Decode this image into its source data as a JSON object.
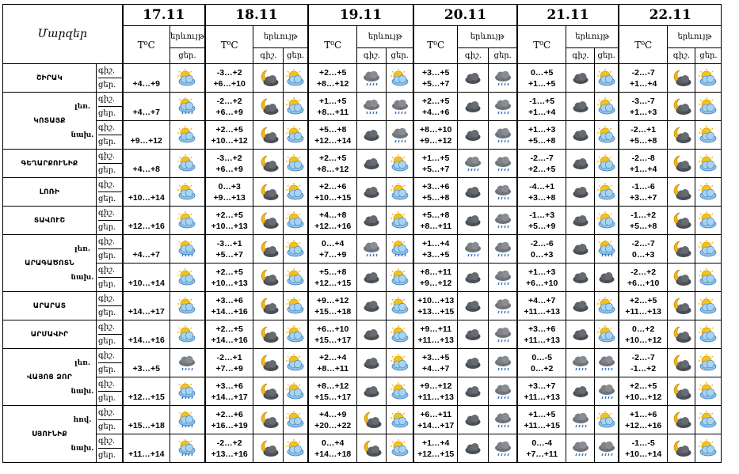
{
  "header": {
    "region_label": "Մարզեր",
    "dates": [
      "17.11",
      "18.11",
      "19.11",
      "20.11",
      "21.11",
      "22.11"
    ],
    "temp_label": "T⁰C",
    "weather_label": "երևույթ",
    "night_label": "գիշ.",
    "day_label": "ցեր."
  },
  "day_night_labels": {
    "night": "գիշ.",
    "day": "ցեր."
  },
  "rows": [
    {
      "region": "ՇԻՐԱԿ",
      "sub": "",
      "night_label": "գիշ.",
      "day_label": "ցեր.",
      "d17": {
        "temp": "+4…+9",
        "icon": "sun-cloud-icon"
      },
      "days": [
        {
          "night": "-3…+2",
          "day": "+6…+10",
          "icon_night": "moon-cloud-icon",
          "icon_day": "sun-cloud-icon"
        },
        {
          "night": "+2…+5",
          "day": "+8…+12",
          "icon_night": "rain-cloud-icon",
          "icon_day": "sun-cloud-icon"
        },
        {
          "night": "+3…+5",
          "day": "+5…+7",
          "icon_night": "dark-cloud-icon",
          "icon_day": "rain-cloud-icon"
        },
        {
          "night": "0…+5",
          "day": "+1…+5",
          "icon_night": "dark-cloud-icon",
          "icon_day": "sun-cloud-icon"
        },
        {
          "night": "-2…-7",
          "day": "+1…+4",
          "icon_night": "moon-cloud-icon",
          "icon_day": "sun-cloud-icon"
        }
      ]
    },
    {
      "region": "ԿՈՏԱՅՔ",
      "sub": "լեռ.",
      "night_label": "գիշ.",
      "day_label": "ցեր.",
      "d17": {
        "temp": "+4…+7",
        "icon": "sun-rain-icon"
      },
      "days": [
        {
          "night": "-2…+2",
          "day": "+6…+9",
          "icon_night": "moon-cloud-icon",
          "icon_day": "sun-cloud-icon"
        },
        {
          "night": "+1…+5",
          "day": "+8…+11",
          "icon_night": "rain-cloud-icon",
          "icon_day": "rain-cloud-icon"
        },
        {
          "night": "+2…+5",
          "day": "+4…+6",
          "icon_night": "dark-cloud-icon",
          "icon_day": "rain-cloud-icon"
        },
        {
          "night": "-1…+5",
          "day": "+1…+4",
          "icon_night": "dark-cloud-icon",
          "icon_day": "sun-cloud-icon"
        },
        {
          "night": "-3…-7",
          "day": "+1…+3",
          "icon_night": "moon-cloud-icon",
          "icon_day": "sun-cloud-icon"
        }
      ]
    },
    {
      "region": "",
      "sub": "նախ.",
      "night_label": "գիշ.",
      "day_label": "ցեր.",
      "d17": {
        "temp": "+9…+12",
        "icon": "sun-cloud-icon"
      },
      "days": [
        {
          "night": "+2…+5",
          "day": "+10…+12",
          "icon_night": "moon-cloud-icon",
          "icon_day": "sun-cloud-icon"
        },
        {
          "night": "+5…+8",
          "day": "+12…+14",
          "icon_night": "dark-cloud-icon",
          "icon_day": "rain-cloud-icon"
        },
        {
          "night": "+8…+10",
          "day": "+9…+12",
          "icon_night": "dark-cloud-icon",
          "icon_day": "rain-cloud-icon"
        },
        {
          "night": "+1…+3",
          "day": "+5…+8",
          "icon_night": "dark-cloud-icon",
          "icon_day": "sun-cloud-icon"
        },
        {
          "night": "-2…+1",
          "day": "+5…+8",
          "icon_night": "moon-cloud-icon",
          "icon_day": "sun-cloud-icon"
        }
      ]
    },
    {
      "region": "ԳԵՂԱՐՔՈՒՆԻՔ",
      "sub": "",
      "night_label": "գիշ.",
      "day_label": "ցեր.",
      "d17": {
        "temp": "+4…+8",
        "icon": "sun-cloud-icon"
      },
      "days": [
        {
          "night": "-3…+2",
          "day": "+6…+9",
          "icon_night": "moon-cloud-icon",
          "icon_day": "sun-cloud-icon"
        },
        {
          "night": "+2…+5",
          "day": "+8…+12",
          "icon_night": "dark-cloud-icon",
          "icon_day": "sun-cloud-icon"
        },
        {
          "night": "+1…+5",
          "day": "+5…+7",
          "icon_night": "rain-cloud-icon",
          "icon_day": "rain-cloud-icon"
        },
        {
          "night": "-2…-7",
          "day": "+2…+5",
          "icon_night": "dark-cloud-icon",
          "icon_day": "sun-cloud-icon"
        },
        {
          "night": "-2…-8",
          "day": "+1…+4",
          "icon_night": "moon-cloud-icon",
          "icon_day": "sun-cloud-icon"
        }
      ]
    },
    {
      "region": "ԼՈՌԻ",
      "sub": "",
      "night_label": "գիշ.",
      "day_label": "ցեր.",
      "d17": {
        "temp": "+10…+14",
        "icon": "sun-cloud-icon"
      },
      "days": [
        {
          "night": "0…+3",
          "day": "+9…+13",
          "icon_night": "moon-cloud-icon",
          "icon_day": "sun-cloud-icon"
        },
        {
          "night": "+2…+6",
          "day": "+10…+15",
          "icon_night": "dark-cloud-icon",
          "icon_day": "sun-cloud-icon"
        },
        {
          "night": "+3…+6",
          "day": "+5…+8",
          "icon_night": "dark-cloud-icon",
          "icon_day": "rain-cloud-icon"
        },
        {
          "night": "-4…+1",
          "day": "+3…+8",
          "icon_night": "dark-cloud-icon",
          "icon_day": "sun-cloud-icon"
        },
        {
          "night": "-1…-6",
          "day": "+3…+7",
          "icon_night": "moon-cloud-icon",
          "icon_day": "sun-cloud-icon"
        }
      ]
    },
    {
      "region": "ՏԱՎՈՒՇ",
      "sub": "",
      "night_label": "գիշ.",
      "day_label": "ցեր.",
      "d17": {
        "temp": "+12…+16",
        "icon": "sun-cloud-icon"
      },
      "days": [
        {
          "night": "+2…+5",
          "day": "+10…+13",
          "icon_night": "moon-cloud-icon",
          "icon_day": "sun-cloud-icon"
        },
        {
          "night": "+4…+8",
          "day": "+12…+16",
          "icon_night": "dark-cloud-icon",
          "icon_day": "sun-cloud-icon"
        },
        {
          "night": "+5…+8",
          "day": "+8…+11",
          "icon_night": "dark-cloud-icon",
          "icon_day": "rain-cloud-icon"
        },
        {
          "night": "-1…+3",
          "day": "+5…+9",
          "icon_night": "dark-cloud-icon",
          "icon_day": "sun-cloud-icon"
        },
        {
          "night": "-1…+2",
          "day": "+5…+8",
          "icon_night": "moon-cloud-icon",
          "icon_day": "sun-cloud-icon"
        }
      ]
    },
    {
      "region": "ԱՐԱԳԱԾՈՏՆ",
      "sub": "լեռ.",
      "night_label": "գիշ.",
      "day_label": "ցեր.",
      "d17": {
        "temp": "+4…+7",
        "icon": "sun-rain-icon"
      },
      "days": [
        {
          "night": "-3…+1",
          "day": "+5…+7",
          "icon_night": "moon-cloud-icon",
          "icon_day": "sun-cloud-icon"
        },
        {
          "night": "0…+4",
          "day": "+7…+9",
          "icon_night": "rain-cloud-icon",
          "icon_day": "sun-rain-icon"
        },
        {
          "night": "+1…+4",
          "day": "+3…+5",
          "icon_night": "rain-cloud-icon",
          "icon_day": "rain-cloud-icon"
        },
        {
          "night": "-2…-6",
          "day": "0…+3",
          "icon_night": "dark-cloud-icon",
          "icon_day": "sun-rain-icon"
        },
        {
          "night": "-2…-7",
          "day": "0…+3",
          "icon_night": "moon-cloud-icon",
          "icon_day": "sun-cloud-icon"
        }
      ]
    },
    {
      "region": "",
      "sub": "նախ.",
      "night_label": "գիշ.",
      "day_label": "ցեր.",
      "d17": {
        "temp": "+10…+14",
        "icon": "sun-cloud-icon"
      },
      "days": [
        {
          "night": "+2…+5",
          "day": "+10…+13",
          "icon_night": "moon-cloud-icon",
          "icon_day": "sun-cloud-icon"
        },
        {
          "night": "+5…+8",
          "day": "+12…+15",
          "icon_night": "dark-cloud-icon",
          "icon_day": "sun-cloud-icon"
        },
        {
          "night": "+8…+11",
          "day": "+9…+12",
          "icon_night": "dark-cloud-icon",
          "icon_day": "rain-cloud-icon"
        },
        {
          "night": "+1…+3",
          "day": "+6…+10",
          "icon_night": "dark-cloud-icon",
          "icon_day": "dark-cloud-icon"
        },
        {
          "night": "-2…+2",
          "day": "+6…+10",
          "icon_night": "moon-cloud-icon",
          "icon_day": "sun-cloud-icon"
        }
      ]
    },
    {
      "region": "ԱՐԱՐԱՏ",
      "sub": "",
      "night_label": "գիշ.",
      "day_label": "ցեր.",
      "d17": {
        "temp": "+14…+17",
        "icon": "sun-cloud-icon"
      },
      "days": [
        {
          "night": "+3…+6",
          "day": "+14…+16",
          "icon_night": "moon-cloud-icon",
          "icon_day": "sun-cloud-icon"
        },
        {
          "night": "+9…+12",
          "day": "+15…+18",
          "icon_night": "dark-cloud-icon",
          "icon_day": "sun-cloud-icon"
        },
        {
          "night": "+10…+13",
          "day": "+13…+15",
          "icon_night": "dark-cloud-icon",
          "icon_day": "rain-cloud-icon"
        },
        {
          "night": "+4…+7",
          "day": "+11…+13",
          "icon_night": "dark-cloud-icon",
          "icon_day": "sun-cloud-icon"
        },
        {
          "night": "+2…+5",
          "day": "+11…+13",
          "icon_night": "moon-cloud-icon",
          "icon_day": "sun-cloud-icon"
        }
      ]
    },
    {
      "region": "ԱՐՄԱՎԻՐ",
      "sub": "",
      "night_label": "գիշ.",
      "day_label": "ցեր.",
      "d17": {
        "temp": "+14…+16",
        "icon": "sun-cloud-icon"
      },
      "days": [
        {
          "night": "+2…+5",
          "day": "+14…+16",
          "icon_night": "moon-cloud-icon",
          "icon_day": "sun-cloud-icon"
        },
        {
          "night": "+6…+10",
          "day": "+15…+17",
          "icon_night": "dark-cloud-icon",
          "icon_day": "sun-cloud-icon"
        },
        {
          "night": "+9…+11",
          "day": "+11…+13",
          "icon_night": "dark-cloud-icon",
          "icon_day": "rain-cloud-icon"
        },
        {
          "night": "+3…+6",
          "day": "+11…+13",
          "icon_night": "dark-cloud-icon",
          "icon_day": "sun-cloud-icon"
        },
        {
          "night": "0…+2",
          "day": "+10…+12",
          "icon_night": "moon-cloud-icon",
          "icon_day": "sun-cloud-icon"
        }
      ]
    },
    {
      "region": "ՎԱՅՈՑ ՁՈՐ",
      "sub": "լեռ.",
      "night_label": "գիշ.",
      "day_label": "ցեր.",
      "d17": {
        "temp": "+3…+5",
        "icon": "rain-cloud-icon"
      },
      "days": [
        {
          "night": "-2…+1",
          "day": "+7…+9",
          "icon_night": "moon-cloud-icon",
          "icon_day": "sun-cloud-icon"
        },
        {
          "night": "+2…+4",
          "day": "+8…+11",
          "icon_night": "dark-cloud-icon",
          "icon_day": "sun-cloud-icon"
        },
        {
          "night": "+3…+5",
          "day": "+4…+7",
          "icon_night": "dark-cloud-icon",
          "icon_day": "rain-cloud-icon"
        },
        {
          "night": "0…-5",
          "day": "0…+2",
          "icon_night": "rain-cloud-icon",
          "icon_day": "rain-cloud-icon"
        },
        {
          "night": "-2…-7",
          "day": "-1…+2",
          "icon_night": "moon-cloud-icon",
          "icon_day": "sun-cloud-icon"
        }
      ]
    },
    {
      "region": "",
      "sub": "նախ.",
      "night_label": "գիշ.",
      "day_label": "ցեր.",
      "d17": {
        "temp": "+12…+15",
        "icon": "sun-rain-icon"
      },
      "days": [
        {
          "night": "+3…+6",
          "day": "+14…+17",
          "icon_night": "moon-cloud-icon",
          "icon_day": "sun-cloud-icon"
        },
        {
          "night": "+8…+12",
          "day": "+15…+17",
          "icon_night": "dark-cloud-icon",
          "icon_day": "sun-cloud-icon"
        },
        {
          "night": "+9…+12",
          "day": "+11…+13",
          "icon_night": "dark-cloud-icon",
          "icon_day": "rain-cloud-icon"
        },
        {
          "night": "+3…+7",
          "day": "+11…+13",
          "icon_night": "dark-cloud-icon",
          "icon_day": "rain-cloud-icon"
        },
        {
          "night": "+2…+5",
          "day": "+10…+12",
          "icon_night": "moon-cloud-icon",
          "icon_day": "sun-cloud-icon"
        }
      ]
    },
    {
      "region": "ՍՅՈՒՆԻՔ",
      "sub": "հով.",
      "night_label": "գիշ.",
      "day_label": "ցեր.",
      "d17": {
        "temp": "+15…+18",
        "icon": "sun-rain-icon"
      },
      "days": [
        {
          "night": "+2…+6",
          "day": "+16…+19",
          "icon_night": "moon-cloud-icon",
          "icon_day": "sun-cloud-icon"
        },
        {
          "night": "+4…+9",
          "day": "+20…+22",
          "icon_night": "moon-cloud-icon",
          "icon_day": "sun-cloud-icon"
        },
        {
          "night": "+6…+11",
          "day": "+14…+17",
          "icon_night": "dark-cloud-icon",
          "icon_day": "rain-cloud-icon"
        },
        {
          "night": "+1…+5",
          "day": "+11…+15",
          "icon_night": "rain-cloud-icon",
          "icon_day": "sun-cloud-icon"
        },
        {
          "night": "+1…+6",
          "day": "+12…+16",
          "icon_night": "moon-cloud-icon",
          "icon_day": "sun-cloud-icon"
        }
      ]
    },
    {
      "region": "",
      "sub": "նախ.",
      "night_label": "գիշ.",
      "day_label": "ցեր.",
      "d17": {
        "temp": "+11…+14",
        "icon": "sun-rain-icon"
      },
      "days": [
        {
          "night": "-2…+2",
          "day": "+13…+16",
          "icon_night": "moon-cloud-icon",
          "icon_day": "sun-cloud-icon"
        },
        {
          "night": "0…+4",
          "day": "+14…+18",
          "icon_night": "moon-cloud-icon",
          "icon_day": "sun-cloud-icon"
        },
        {
          "night": "+1…+4",
          "day": "+12…+15",
          "icon_night": "dark-cloud-icon",
          "icon_day": "rain-cloud-icon"
        },
        {
          "night": "0…-4",
          "day": "+7…+11",
          "icon_night": "rain-cloud-icon",
          "icon_day": "rain-cloud-icon"
        },
        {
          "night": "-1…-5",
          "day": "+10…+14",
          "icon_night": "moon-cloud-icon",
          "icon_day": "sun-cloud-icon"
        }
      ]
    }
  ]
}
